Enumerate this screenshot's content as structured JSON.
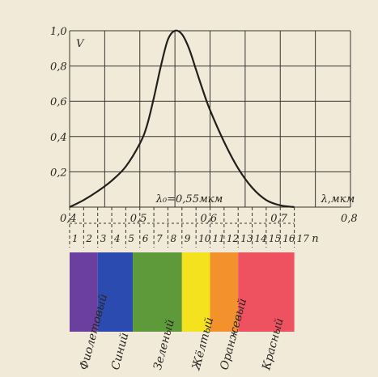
{
  "chart_data": {
    "type": "line",
    "ylabel": "V",
    "xlabel": "λ,мкм",
    "xlim": [
      0.4,
      0.8
    ],
    "ylim": [
      0,
      1.0
    ],
    "x_ticks": [
      "0,4",
      "0,5",
      "0,6",
      "0,7",
      "0,8"
    ],
    "y_ticks": [
      "0,2",
      "0,4",
      "0,6",
      "0,8",
      "1,0"
    ],
    "grid": true,
    "annotation": "λ₀=0,55мкм",
    "series": [
      {
        "values": [
          {
            "x": 0.4,
            "y": 0.0
          },
          {
            "x": 0.42,
            "y": 0.04
          },
          {
            "x": 0.44,
            "y": 0.09
          },
          {
            "x": 0.46,
            "y": 0.15
          },
          {
            "x": 0.48,
            "y": 0.23
          },
          {
            "x": 0.5,
            "y": 0.36
          },
          {
            "x": 0.51,
            "y": 0.46
          },
          {
            "x": 0.52,
            "y": 0.62
          },
          {
            "x": 0.53,
            "y": 0.8
          },
          {
            "x": 0.54,
            "y": 0.95
          },
          {
            "x": 0.55,
            "y": 1.0
          },
          {
            "x": 0.56,
            "y": 0.98
          },
          {
            "x": 0.57,
            "y": 0.9
          },
          {
            "x": 0.58,
            "y": 0.78
          },
          {
            "x": 0.59,
            "y": 0.66
          },
          {
            "x": 0.6,
            "y": 0.55
          },
          {
            "x": 0.62,
            "y": 0.37
          },
          {
            "x": 0.64,
            "y": 0.22
          },
          {
            "x": 0.66,
            "y": 0.11
          },
          {
            "x": 0.68,
            "y": 0.04
          },
          {
            "x": 0.7,
            "y": 0.01
          },
          {
            "x": 0.72,
            "y": 0.0
          }
        ]
      }
    ],
    "subdivisions": {
      "labels": [
        "1",
        "2",
        "3",
        "4",
        "5",
        "6",
        "7",
        "8",
        "9",
        "10",
        "11",
        "12",
        "13",
        "14",
        "15",
        "16",
        "17"
      ],
      "axis_label": "n",
      "x_positions": [
        0.4,
        0.42,
        0.44,
        0.46,
        0.48,
        0.5,
        0.52,
        0.54,
        0.56,
        0.58,
        0.6,
        0.62,
        0.64,
        0.66,
        0.68,
        0.7,
        0.72
      ]
    },
    "bands": [
      {
        "label": "Фиолетовый",
        "start": 0.4,
        "end": 0.44,
        "color": "#6a3fa0"
      },
      {
        "label": "Синий",
        "start": 0.44,
        "end": 0.49,
        "color": "#2b4bb0"
      },
      {
        "label": "Зеленый",
        "start": 0.49,
        "end": 0.56,
        "color": "#5e9a3a"
      },
      {
        "label": "Жёлтый",
        "start": 0.56,
        "end": 0.6,
        "color": "#f5e21f"
      },
      {
        "label": "Оранжевый",
        "start": 0.6,
        "end": 0.64,
        "color": "#f3922d"
      },
      {
        "label": "Красный",
        "start": 0.64,
        "end": 0.72,
        "color": "#ee5260"
      }
    ],
    "line_color": "#221e1b",
    "grid_color": "#3a3530"
  }
}
